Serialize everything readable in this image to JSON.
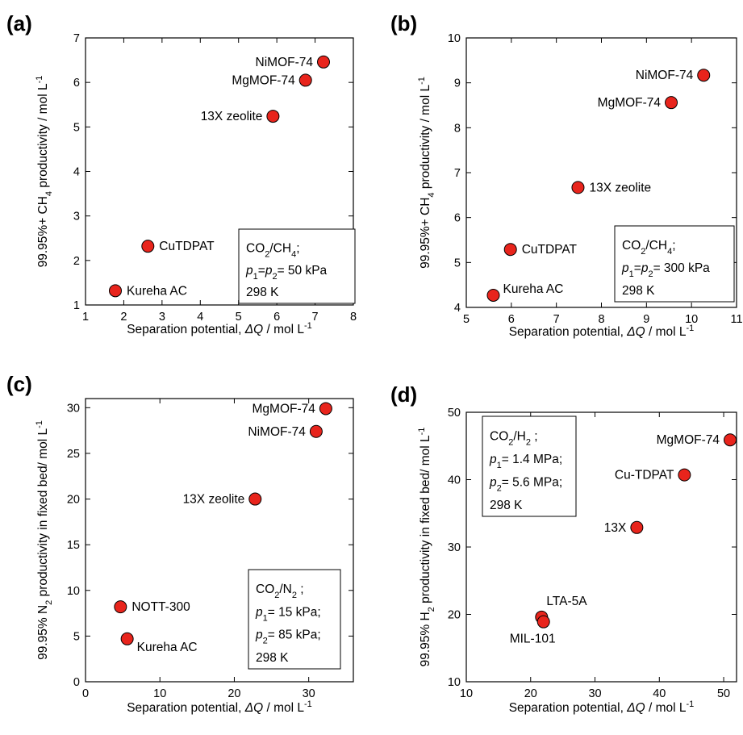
{
  "chart_data": [
    {
      "type": "scatter",
      "panel_label": "(a)",
      "xlabel": {
        "pre": "Separation potential, ",
        "sym": "ΔQ",
        "post": " / mol L",
        "sup": "-1"
      },
      "ylabel": {
        "pre": "99.95%+ CH",
        "sub": "4",
        "post": " productivity / mol L",
        "sup": "-1"
      },
      "xlim": [
        1,
        8
      ],
      "ylim": [
        1,
        7
      ],
      "xticks": [
        1,
        2,
        3,
        4,
        5,
        6,
        7,
        8
      ],
      "yticks": [
        1,
        2,
        3,
        4,
        5,
        6,
        7
      ],
      "tick_labels_x": [
        "1",
        "2",
        "3",
        "4",
        "5",
        "6",
        "7",
        "8"
      ],
      "tick_labels_y": [
        "1",
        "2",
        "3",
        "4",
        "5",
        "6",
        "7"
      ],
      "grid": false,
      "points": [
        {
          "label": "NiMOF-74",
          "x": 7.22,
          "y": 6.46,
          "anchor": "left"
        },
        {
          "label": "MgMOF-74",
          "x": 6.75,
          "y": 6.05,
          "anchor": "left"
        },
        {
          "label": "13X zeolite",
          "x": 5.9,
          "y": 5.24,
          "anchor": "left"
        },
        {
          "label": "CuTDPAT",
          "x": 2.63,
          "y": 2.32,
          "anchor": "right"
        },
        {
          "label": "Kureha AC",
          "x": 1.78,
          "y": 1.32,
          "anchor": "right"
        }
      ],
      "note_lines": [
        [
          {
            "t": "CO"
          },
          {
            "t": "2",
            "sub": true
          },
          {
            "t": "/CH"
          },
          {
            "t": "4",
            "sub": true
          },
          {
            "t": ";"
          }
        ],
        [
          {
            "t": "p",
            "italic": true
          },
          {
            "t": "1",
            "sub": true
          },
          {
            "t": "="
          },
          {
            "t": "p",
            "italic": true
          },
          {
            "t": "2",
            "sub": true
          },
          {
            "t": "= 50  kPa"
          }
        ],
        [
          {
            "t": "298 K"
          }
        ]
      ],
      "marker_color": "#e8241c"
    },
    {
      "type": "scatter",
      "panel_label": "(b)",
      "xlabel": {
        "pre": "Separation potential, ",
        "sym": "ΔQ",
        "post": " / mol L",
        "sup": "-1"
      },
      "ylabel": {
        "pre": "99.95%+ CH",
        "sub": "4",
        "post": " productivity / mol L",
        "sup": "-1"
      },
      "xlim": [
        5,
        11
      ],
      "ylim": [
        4,
        10
      ],
      "xticks": [
        5,
        6,
        7,
        8,
        9,
        10,
        11
      ],
      "yticks": [
        4,
        5,
        6,
        7,
        8,
        9,
        10
      ],
      "tick_labels_x": [
        "5",
        "6",
        "7",
        "8",
        "9",
        "10",
        "11"
      ],
      "tick_labels_y": [
        "4",
        "5",
        "6",
        "7",
        "8",
        "9",
        "10"
      ],
      "grid": false,
      "points": [
        {
          "label": "NiMOF-74",
          "x": 10.27,
          "y": 9.17,
          "anchor": "left"
        },
        {
          "label": "MgMOF-74",
          "x": 9.55,
          "y": 8.56,
          "anchor": "left"
        },
        {
          "label": "13X zeolite",
          "x": 7.48,
          "y": 6.67,
          "anchor": "right"
        },
        {
          "label": "CuTDPAT",
          "x": 5.98,
          "y": 5.29,
          "anchor": "right"
        },
        {
          "label": "Kureha AC",
          "x": 5.6,
          "y": 4.27,
          "anchor": "right-up"
        }
      ],
      "note_lines": [
        [
          {
            "t": "CO"
          },
          {
            "t": "2",
            "sub": true
          },
          {
            "t": "/CH"
          },
          {
            "t": "4",
            "sub": true
          },
          {
            "t": ";"
          }
        ],
        [
          {
            "t": "p",
            "italic": true
          },
          {
            "t": "1",
            "sub": true
          },
          {
            "t": "="
          },
          {
            "t": "p",
            "italic": true
          },
          {
            "t": "2",
            "sub": true
          },
          {
            "t": "= 300  kPa"
          }
        ],
        [
          {
            "t": "298 K"
          }
        ]
      ],
      "marker_color": "#e8241c"
    },
    {
      "type": "scatter",
      "panel_label": "(c)",
      "xlabel": {
        "pre": "Separation potential, ",
        "sym": "ΔQ",
        "post": " / mol L",
        "sup": "-1"
      },
      "ylabel": {
        "pre": "99.95% N",
        "sub": "2",
        "post": " productivity in fixed bed/ mol L",
        "sup": "-1"
      },
      "xlim": [
        0,
        36
      ],
      "ylim": [
        0,
        31
      ],
      "xticks": [
        0,
        10,
        20,
        30
      ],
      "yticks": [
        0,
        5,
        10,
        15,
        20,
        25,
        30
      ],
      "tick_labels_x": [
        "0",
        "10",
        "20",
        "30"
      ],
      "tick_labels_y": [
        "0",
        "5",
        "10",
        "15",
        "20",
        "25",
        "30"
      ],
      "grid": false,
      "points": [
        {
          "label": "MgMOF-74",
          "x": 32.3,
          "y": 29.9,
          "anchor": "left"
        },
        {
          "label": "NiMOF-74",
          "x": 31.0,
          "y": 27.4,
          "anchor": "left"
        },
        {
          "label": "13X zeolite",
          "x": 22.8,
          "y": 20.0,
          "anchor": "left"
        },
        {
          "label": "NOTT-300",
          "x": 4.7,
          "y": 8.2,
          "anchor": "right"
        },
        {
          "label": "Kureha AC",
          "x": 5.6,
          "y": 4.7,
          "anchor": "right-down"
        }
      ],
      "note_lines": [
        [
          {
            "t": "CO"
          },
          {
            "t": "2",
            "sub": true
          },
          {
            "t": "/N"
          },
          {
            "t": "2",
            "sub": true
          },
          {
            "t": " ;"
          }
        ],
        [
          {
            "t": "p",
            "italic": true
          },
          {
            "t": "1",
            "sub": true
          },
          {
            "t": "= 15  kPa;"
          }
        ],
        [
          {
            "t": "p",
            "italic": true
          },
          {
            "t": "2",
            "sub": true
          },
          {
            "t": "= 85  kPa;"
          }
        ],
        [
          {
            "t": "298 K"
          }
        ]
      ],
      "marker_color": "#e8241c"
    },
    {
      "type": "scatter",
      "panel_label": "(d)",
      "xlabel": {
        "pre": "Separation potential, ",
        "sym": "ΔQ",
        "post": " / mol L",
        "sup": "-1"
      },
      "ylabel": {
        "pre": "99.95% H",
        "sub": "2",
        "post": " productivity in fixed bed/ mol L",
        "sup": "-1"
      },
      "xlim": [
        10,
        52
      ],
      "ylim": [
        10,
        50
      ],
      "xticks": [
        10,
        20,
        30,
        40,
        50
      ],
      "yticks": [
        10,
        20,
        30,
        40,
        50
      ],
      "tick_labels_x": [
        "10",
        "20",
        "30",
        "40",
        "50"
      ],
      "tick_labels_y": [
        "10",
        "20",
        "30",
        "40",
        "50"
      ],
      "grid": false,
      "points": [
        {
          "label": "MgMOF-74",
          "x": 51.0,
          "y": 45.9,
          "anchor": "left"
        },
        {
          "label": "Cu-TDPAT",
          "x": 43.9,
          "y": 40.7,
          "anchor": "left"
        },
        {
          "label": "13X",
          "x": 36.5,
          "y": 32.9,
          "anchor": "left"
        },
        {
          "label": "LTA-5A",
          "x": 21.7,
          "y": 19.6,
          "anchor": "right-up"
        },
        {
          "label": "MIL-101",
          "x": 22.0,
          "y": 18.9,
          "anchor": "right-down"
        }
      ],
      "note_lines": [
        [
          {
            "t": "CO"
          },
          {
            "t": "2",
            "sub": true
          },
          {
            "t": "/H"
          },
          {
            "t": "2",
            "sub": true
          },
          {
            "t": "  ;"
          }
        ],
        [
          {
            "t": "p",
            "italic": true
          },
          {
            "t": "1",
            "sub": true
          },
          {
            "t": "= 1.4  MPa;"
          }
        ],
        [
          {
            "t": "p",
            "italic": true
          },
          {
            "t": "2",
            "sub": true
          },
          {
            "t": "= 5.6 MPa;"
          }
        ],
        [
          {
            "t": "298 K"
          }
        ]
      ],
      "marker_color": "#e8241c"
    }
  ]
}
